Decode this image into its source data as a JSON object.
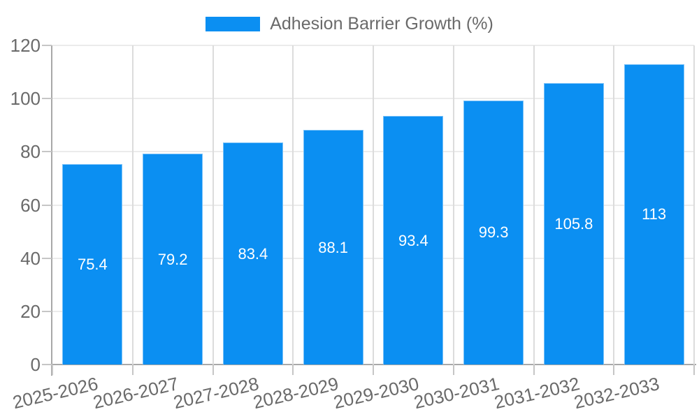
{
  "chart_data": {
    "type": "bar",
    "title": "Adhesion Barrier Growth (%)",
    "series_name": "Adhesion Barrier Growth (%)",
    "categories": [
      "2025-2026",
      "2026-2027",
      "2027-2028",
      "2028-2029",
      "2029-2030",
      "2030-2031",
      "2031-2032",
      "2032-2033"
    ],
    "values": [
      75.4,
      79.2,
      83.4,
      88.1,
      93.4,
      99.3,
      105.8,
      113
    ],
    "value_labels": [
      "75.4",
      "79.2",
      "83.4",
      "88.1",
      "93.4",
      "99.3",
      "105.8",
      "113"
    ],
    "xlabel": "",
    "ylabel": "",
    "ylim": [
      0,
      120
    ],
    "yticks": [
      0,
      20,
      40,
      60,
      80,
      100,
      120
    ],
    "grid": true,
    "legend_position": "top",
    "x_label_rotation_deg": -13,
    "bar_color": "#0b8ff2",
    "value_label_color": "#ffffff",
    "tick_label_color": "#6a6a6a"
  }
}
